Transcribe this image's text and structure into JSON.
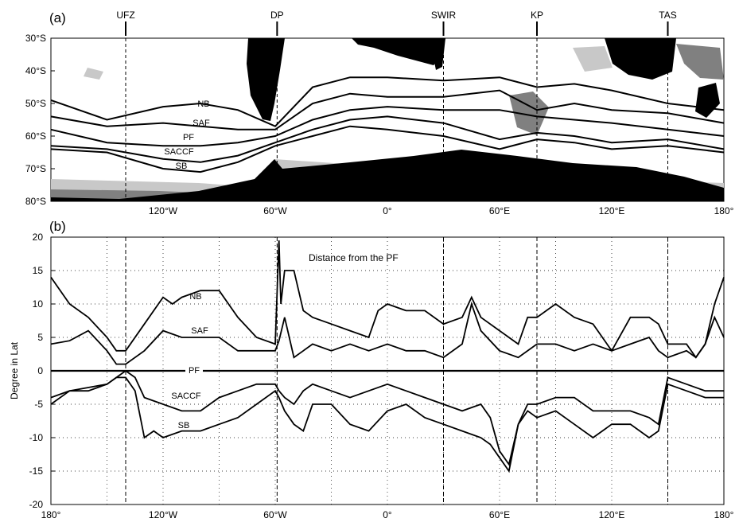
{
  "panel_a": {
    "label": "(a)",
    "features": [
      "UFZ",
      "DP",
      "SWIR",
      "KP",
      "TAS"
    ],
    "feature_lons": [
      -140,
      -59,
      30,
      80,
      150
    ],
    "y_ticks": [
      "30°S",
      "40°S",
      "50°S",
      "60°S",
      "70°S",
      "80°S"
    ],
    "x_ticks": [
      "120°W",
      "60°W",
      "0°",
      "60°E",
      "120°E",
      "180°"
    ],
    "front_labels": [
      "NB",
      "SAF",
      "PF",
      "SACCF",
      "SB"
    ]
  },
  "panel_b": {
    "label": "(b)",
    "annotation": "Distance from the PF",
    "y_label": "Degree in Lat",
    "pf_label": "PF"
  },
  "colors": {
    "land": "#000000",
    "shallow": "#808080",
    "mid": "#c8c8c8",
    "line": "#000000"
  },
  "chart_data": [
    {
      "type": "map",
      "lon_range": [
        -180,
        180
      ],
      "lat_range": [
        -80,
        -30
      ],
      "series": [
        {
          "name": "NB",
          "lon": [
            -180,
            -150,
            -120,
            -100,
            -80,
            -60,
            -40,
            -20,
            0,
            30,
            60,
            80,
            100,
            120,
            150,
            180
          ],
          "lat": [
            -49,
            -55,
            -51,
            -50,
            -52,
            -57,
            -45,
            -42,
            -42,
            -43,
            -42,
            -45,
            -44,
            -46,
            -50,
            -52
          ]
        },
        {
          "name": "SAF",
          "lon": [
            -180,
            -150,
            -120,
            -100,
            -80,
            -60,
            -40,
            -20,
            0,
            30,
            60,
            80,
            100,
            120,
            150,
            180
          ],
          "lat": [
            -54,
            -57,
            -56,
            -57,
            -58,
            -58,
            -50,
            -47,
            -48,
            -48,
            -46,
            -52,
            -50,
            -52,
            -53,
            -56
          ]
        },
        {
          "name": "PF",
          "lon": [
            -180,
            -150,
            -120,
            -100,
            -80,
            -60,
            -40,
            -20,
            0,
            30,
            60,
            80,
            100,
            120,
            150,
            180
          ],
          "lat": [
            -58,
            -62,
            -63,
            -63,
            -62,
            -60,
            -55,
            -52,
            -51,
            -52,
            -52,
            -54,
            -55,
            -56,
            -58,
            -60
          ]
        },
        {
          "name": "SACCF",
          "lon": [
            -180,
            -150,
            -120,
            -100,
            -80,
            -60,
            -40,
            -20,
            0,
            30,
            60,
            80,
            100,
            120,
            150,
            180
          ],
          "lat": [
            -63,
            -64,
            -67,
            -68,
            -66,
            -62,
            -58,
            -55,
            -54,
            -56,
            -61,
            -59,
            -60,
            -62,
            -61,
            -64
          ]
        },
        {
          "name": "SB",
          "lon": [
            -180,
            -150,
            -120,
            -100,
            -80,
            -60,
            -40,
            -20,
            0,
            30,
            60,
            80,
            100,
            120,
            150,
            180
          ],
          "lat": [
            -64,
            -65,
            -70,
            -71,
            -68,
            -63,
            -60,
            -57,
            -58,
            -60,
            -64,
            -61,
            -62,
            -64,
            -63,
            -65
          ]
        }
      ]
    },
    {
      "type": "line",
      "title": "Distance from the PF",
      "ylabel": "Degree in Lat",
      "xlim": [
        -180,
        180
      ],
      "ylim": [
        -20,
        20
      ],
      "x_ticks": [
        "180°",
        "120°W",
        "60°W",
        "0°",
        "60°E",
        "120°E",
        "180°"
      ],
      "y_ticks": [
        20,
        15,
        10,
        5,
        0,
        -5,
        -10,
        -15,
        -20
      ],
      "vlines": [
        -140,
        -59,
        30,
        80,
        150
      ],
      "series": [
        {
          "name": "NB",
          "x": [
            -180,
            -170,
            -160,
            -150,
            -145,
            -140,
            -130,
            -120,
            -115,
            -110,
            -100,
            -90,
            -80,
            -70,
            -60,
            -58,
            -57,
            -55,
            -50,
            -45,
            -40,
            -30,
            -20,
            -10,
            -5,
            0,
            10,
            20,
            30,
            40,
            45,
            50,
            60,
            70,
            75,
            80,
            90,
            100,
            110,
            120,
            130,
            140,
            145,
            150,
            160,
            165,
            170,
            175,
            180
          ],
          "y": [
            14,
            10,
            8,
            5,
            3,
            3,
            7,
            11,
            10,
            11,
            12,
            12,
            8,
            5,
            4,
            19.5,
            10,
            15,
            15,
            9,
            8,
            7,
            6,
            5,
            9,
            10,
            9,
            9,
            7,
            8,
            11,
            8,
            6,
            4,
            8,
            8,
            10,
            8,
            7,
            3,
            8,
            8,
            7,
            4,
            4,
            2,
            4,
            10,
            14
          ]
        },
        {
          "name": "SAF",
          "x": [
            -180,
            -170,
            -160,
            -150,
            -145,
            -140,
            -130,
            -120,
            -110,
            -100,
            -90,
            -80,
            -70,
            -60,
            -58,
            -55,
            -50,
            -45,
            -40,
            -30,
            -20,
            -10,
            0,
            10,
            20,
            30,
            40,
            45,
            50,
            60,
            70,
            80,
            90,
            100,
            110,
            120,
            130,
            140,
            145,
            150,
            160,
            165,
            170,
            175,
            180
          ],
          "y": [
            4,
            4.5,
            6,
            3,
            1,
            1,
            3,
            6,
            5,
            5,
            5,
            3,
            3,
            3,
            4.5,
            8,
            2,
            3,
            4,
            3,
            4,
            3,
            4,
            3,
            3,
            2,
            4,
            10,
            6,
            3,
            2,
            4,
            4,
            3,
            4,
            3,
            4,
            5,
            3,
            2,
            3,
            2,
            4,
            8,
            5
          ]
        },
        {
          "name": "PF",
          "x": [
            -180,
            180
          ],
          "y": [
            0,
            0
          ]
        },
        {
          "name": "SACCF",
          "x": [
            -180,
            -170,
            -160,
            -150,
            -145,
            -140,
            -135,
            -130,
            -120,
            -110,
            -100,
            -90,
            -80,
            -70,
            -60,
            -58,
            -55,
            -50,
            -45,
            -40,
            -30,
            -20,
            -10,
            0,
            10,
            20,
            30,
            40,
            50,
            55,
            60,
            65,
            70,
            75,
            80,
            90,
            100,
            110,
            120,
            130,
            140,
            145,
            150,
            160,
            170,
            180
          ],
          "y": [
            -5,
            -3,
            -2.5,
            -2,
            -1,
            0,
            -1,
            -4,
            -5,
            -6,
            -6,
            -4,
            -3,
            -2,
            -2,
            -3,
            -4,
            -5,
            -3,
            -2,
            -3,
            -4,
            -3,
            -2,
            -3,
            -4,
            -5,
            -6,
            -5,
            -7,
            -12,
            -14,
            -8,
            -5,
            -5,
            -4,
            -4,
            -6,
            -6,
            -6,
            -7,
            -8,
            -1,
            -2,
            -3,
            -3
          ]
        },
        {
          "name": "SB",
          "x": [
            -180,
            -170,
            -160,
            -150,
            -145,
            -140,
            -135,
            -130,
            -125,
            -120,
            -110,
            -100,
            -90,
            -80,
            -70,
            -60,
            -58,
            -55,
            -50,
            -45,
            -40,
            -30,
            -20,
            -10,
            0,
            10,
            20,
            30,
            40,
            50,
            55,
            60,
            65,
            70,
            75,
            80,
            90,
            100,
            110,
            120,
            130,
            140,
            145,
            150,
            160,
            170,
            180
          ],
          "y": [
            -4,
            -3,
            -3,
            -2,
            -1,
            -1,
            -3,
            -10,
            -9,
            -10,
            -9,
            -9,
            -8,
            -7,
            -5,
            -3,
            -4,
            -6,
            -8,
            -9,
            -5,
            -5,
            -8,
            -9,
            -6,
            -5,
            -7,
            -8,
            -9,
            -10,
            -11,
            -13,
            -15,
            -8,
            -6,
            -7,
            -6,
            -8,
            -10,
            -8,
            -8,
            -10,
            -9,
            -2,
            -3,
            -4,
            -4
          ]
        }
      ]
    }
  ]
}
